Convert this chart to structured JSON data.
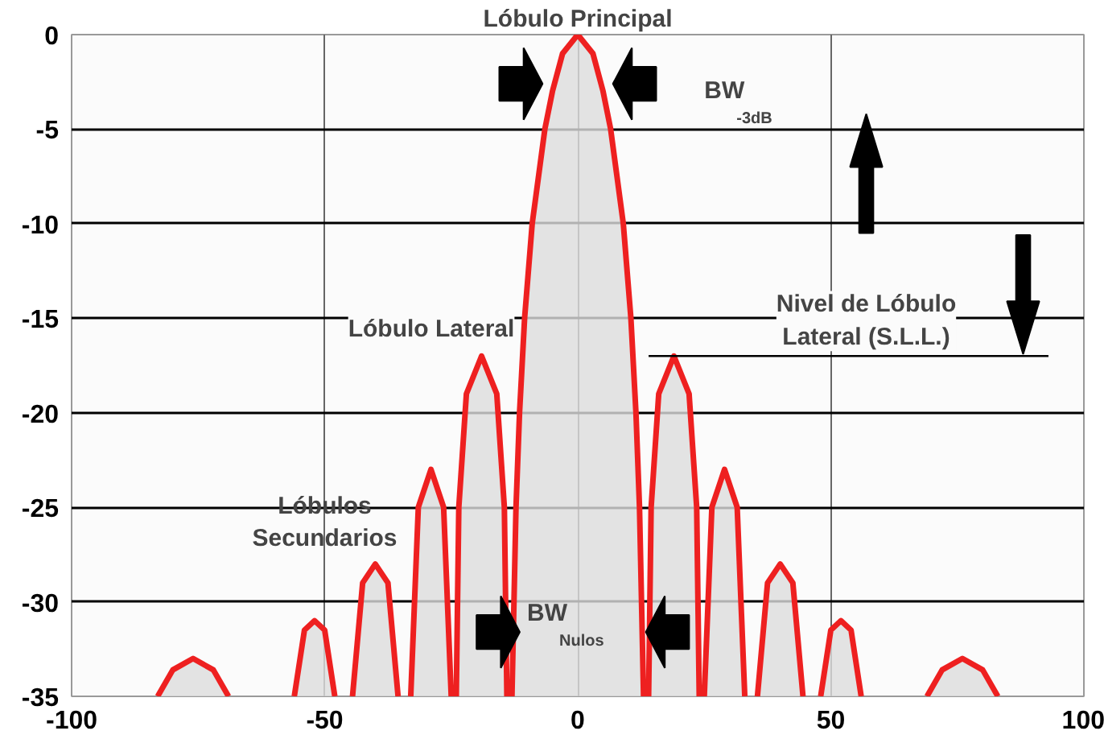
{
  "chart_data": {
    "type": "area",
    "x": [
      -83,
      -80,
      -76,
      -72,
      -69,
      -68,
      -56,
      -54,
      -52,
      -50,
      -48,
      -46,
      -44.5,
      -42.5,
      -40,
      -37.5,
      -35.5,
      -34.5,
      -33,
      -31.5,
      -29,
      -26.5,
      -25,
      -24.5,
      -24,
      -23.5,
      -22,
      -19,
      -16,
      -14.5,
      -14,
      -13.5,
      -13,
      -12.2,
      -11.5,
      -10.5,
      -9,
      -6.5,
      -5,
      -3,
      0,
      3,
      5,
      6.5,
      9,
      10.5,
      11.5,
      12.2,
      13,
      13.5,
      14,
      14.5,
      16,
      19,
      22,
      23.5,
      24,
      24.5,
      25,
      26.5,
      29,
      31.5,
      33,
      34.5,
      35.5,
      37.5,
      40,
      42.5,
      44.5,
      46,
      48,
      50,
      52,
      54,
      56,
      68,
      69,
      72,
      76,
      80,
      83
    ],
    "series": [
      {
        "color": "#ee2020",
        "values": [
          -35,
          -33.6,
          -33,
          -33.6,
          -35,
          null,
          -35,
          -31.5,
          -31,
          -31.5,
          -35,
          null,
          -35,
          -29,
          -28,
          -29,
          -35,
          null,
          -35,
          -25,
          -23,
          -25,
          -35,
          null,
          -35,
          -25,
          -19,
          -17,
          -19,
          -25,
          -35,
          null,
          -35,
          -25,
          -20,
          -15,
          -10,
          -5,
          -3,
          -1,
          0,
          -1,
          -3,
          -5,
          -10,
          -15,
          -20,
          -25,
          -35,
          null,
          -35,
          -25,
          -19,
          -17,
          -19,
          -25,
          -35,
          null,
          -35,
          -25,
          -23,
          -25,
          -35,
          null,
          -35,
          -29,
          -28,
          -29,
          -35,
          null,
          -35,
          -31.5,
          -31,
          -31.5,
          -35,
          null,
          -35,
          -33.6,
          -33,
          -33.6,
          -35
        ]
      }
    ],
    "xlim": [
      -100,
      100
    ],
    "ylim": [
      -35,
      0
    ],
    "xticks": [
      -100,
      -50,
      0,
      50,
      100
    ],
    "yticks": [
      0,
      -5,
      -10,
      -15,
      -20,
      -25,
      -30,
      -35
    ],
    "grid": true,
    "ref_lines": [
      {
        "axis": "y",
        "value": -17,
        "label": "Nivel de Lóbulo\nLateral (S.L.L.)"
      }
    ],
    "title": "Lóbulo Principal",
    "annotations": [
      "BW$_{-3dB}$",
      "Lóbulo Lateral",
      "Lóbulos\nSecundarios",
      "BW$_{Nulos}$"
    ]
  }
}
